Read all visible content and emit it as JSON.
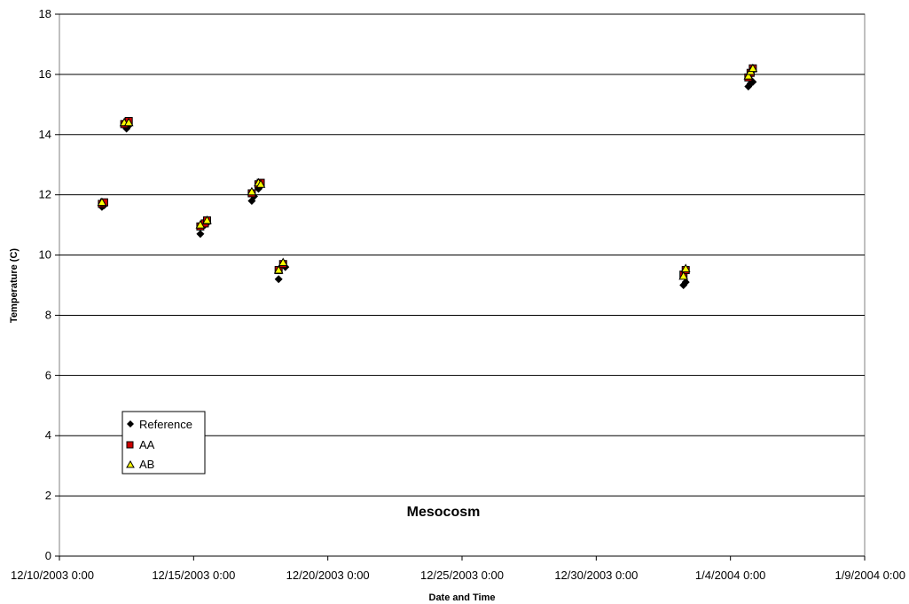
{
  "chart_data": {
    "type": "scatter",
    "xlabel": "Date and Time",
    "ylabel": "Temperature (C)",
    "annotation": "Mesocosm",
    "xlim": [
      "2003-12-10 00:00",
      "2004-01-09 00:00"
    ],
    "ylim": [
      0,
      18
    ],
    "x_tick_labels": [
      "12/10/2003 0:00",
      "12/15/2003 0:00",
      "12/20/2003 0:00",
      "12/25/2003 0:00",
      "12/30/2003 0:00",
      "1/4/2004 0:00",
      "1/9/2004 0:00"
    ],
    "y_ticks": [
      0,
      2,
      4,
      6,
      8,
      10,
      12,
      14,
      16,
      18
    ],
    "grid": "horizontal",
    "legend": "bottom-left",
    "series": [
      {
        "name": "Reference",
        "marker": "diamond",
        "color": "#000000",
        "points": [
          {
            "x": "2003-12-11 14:00",
            "y": 11.6
          },
          {
            "x": "2003-12-11 16:00",
            "y": 11.65
          },
          {
            "x": "2003-12-12 12:00",
            "y": 14.2
          },
          {
            "x": "2003-12-12 14:00",
            "y": 14.3
          },
          {
            "x": "2003-12-15 06:00",
            "y": 10.7
          },
          {
            "x": "2003-12-15 10:00",
            "y": 11.0
          },
          {
            "x": "2003-12-15 12:00",
            "y": 11.05
          },
          {
            "x": "2003-12-17 04:00",
            "y": 11.8
          },
          {
            "x": "2003-12-17 06:00",
            "y": 11.95
          },
          {
            "x": "2003-12-17 10:00",
            "y": 12.2
          },
          {
            "x": "2003-12-17 12:00",
            "y": 12.3
          },
          {
            "x": "2003-12-18 04:00",
            "y": 9.2
          },
          {
            "x": "2003-12-18 10:00",
            "y": 9.6
          },
          {
            "x": "2004-01-02 06:00",
            "y": 9.0
          },
          {
            "x": "2004-01-02 08:00",
            "y": 9.1
          },
          {
            "x": "2004-01-04 16:00",
            "y": 15.6
          },
          {
            "x": "2004-01-04 18:00",
            "y": 15.7
          },
          {
            "x": "2004-01-04 20:00",
            "y": 15.75
          }
        ]
      },
      {
        "name": "AA",
        "marker": "square",
        "color": "#cc0000",
        "points": [
          {
            "x": "2003-12-11 14:00",
            "y": 11.7
          },
          {
            "x": "2003-12-11 16:00",
            "y": 11.75
          },
          {
            "x": "2003-12-12 10:00",
            "y": 14.35
          },
          {
            "x": "2003-12-12 14:00",
            "y": 14.45
          },
          {
            "x": "2003-12-15 06:00",
            "y": 10.95
          },
          {
            "x": "2003-12-15 10:00",
            "y": 11.05
          },
          {
            "x": "2003-12-15 12:00",
            "y": 11.15
          },
          {
            "x": "2003-12-17 04:00",
            "y": 12.05
          },
          {
            "x": "2003-12-17 10:00",
            "y": 12.35
          },
          {
            "x": "2003-12-17 12:00",
            "y": 12.4
          },
          {
            "x": "2003-12-18 04:00",
            "y": 9.5
          },
          {
            "x": "2003-12-18 08:00",
            "y": 9.7
          },
          {
            "x": "2004-01-02 06:00",
            "y": 9.35
          },
          {
            "x": "2004-01-02 08:00",
            "y": 9.5
          },
          {
            "x": "2004-01-04 16:00",
            "y": 15.9
          },
          {
            "x": "2004-01-04 18:00",
            "y": 16.05
          },
          {
            "x": "2004-01-04 20:00",
            "y": 16.2
          }
        ]
      },
      {
        "name": "AB",
        "marker": "triangle",
        "color": "#ffff00",
        "points": [
          {
            "x": "2003-12-11 14:00",
            "y": 11.75
          },
          {
            "x": "2003-12-12 10:00",
            "y": 14.4
          },
          {
            "x": "2003-12-12 14:00",
            "y": 14.4
          },
          {
            "x": "2003-12-15 06:00",
            "y": 11.0
          },
          {
            "x": "2003-12-15 12:00",
            "y": 11.15
          },
          {
            "x": "2003-12-17 04:00",
            "y": 12.1
          },
          {
            "x": "2003-12-17 10:00",
            "y": 12.4
          },
          {
            "x": "2003-12-17 12:00",
            "y": 12.35
          },
          {
            "x": "2003-12-18 04:00",
            "y": 9.5
          },
          {
            "x": "2003-12-18 08:00",
            "y": 9.75
          },
          {
            "x": "2004-01-02 06:00",
            "y": 9.3
          },
          {
            "x": "2004-01-02 08:00",
            "y": 9.55
          },
          {
            "x": "2004-01-04 16:00",
            "y": 15.95
          },
          {
            "x": "2004-01-04 18:00",
            "y": 16.1
          },
          {
            "x": "2004-01-04 20:00",
            "y": 16.2
          }
        ]
      }
    ]
  }
}
